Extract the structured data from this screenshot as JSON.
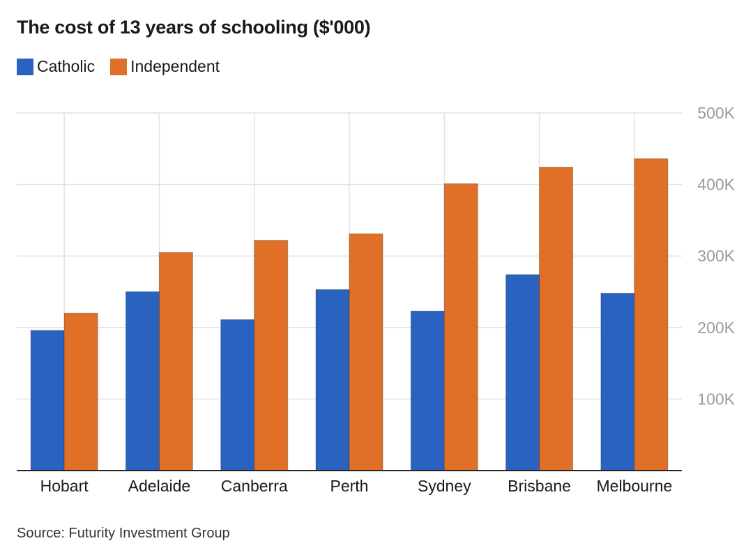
{
  "title": "The cost of 13 years of schooling ($'000)",
  "source": "Source: Futurity Investment Group",
  "colors": {
    "catholic": "#2a62bf",
    "independent": "#e07028",
    "grid": "#e2e2e2",
    "axis": "#222222",
    "tick": "#9a9a9a"
  },
  "chart_data": {
    "type": "bar",
    "title": "The cost of 13 years of schooling ($'000)",
    "categories": [
      "Hobart",
      "Adelaide",
      "Canberra",
      "Perth",
      "Sydney",
      "Brisbane",
      "Melbourne"
    ],
    "series": [
      {
        "name": "Catholic",
        "values": [
          196,
          250,
          211,
          253,
          223,
          274,
          248
        ]
      },
      {
        "name": "Independent",
        "values": [
          220,
          305,
          322,
          331,
          401,
          424,
          436
        ]
      }
    ],
    "ylim": [
      0,
      500
    ],
    "yticks": [
      100,
      200,
      300,
      400,
      500
    ],
    "ytick_labels": [
      "100K",
      "200K",
      "300K",
      "400K",
      "500K"
    ],
    "grid": true,
    "legend_position": "top-left",
    "y_axis_position": "right"
  }
}
